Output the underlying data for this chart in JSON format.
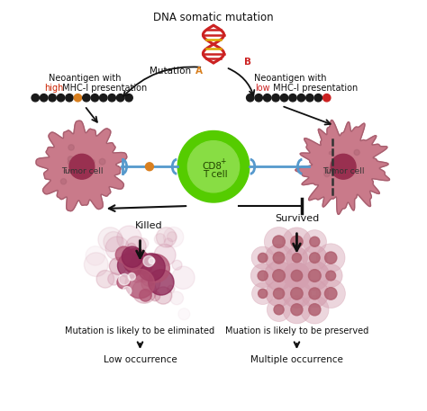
{
  "bg_color": "#ffffff",
  "title": "DNA somatic mutation",
  "left_label_line1": "Neoantigen with",
  "left_label_line2_red": "high",
  "left_label_line2_black": " MHC-I presentation",
  "right_label_line1": "Neoantigen with",
  "right_label_line2_red": "low",
  "right_label_line2_black": " MHC-I presentation",
  "mutation_a_black": "Mutation ",
  "mutation_a_orange": "A",
  "mutation_b_red": "B",
  "cd8_label": "CD8",
  "tumor_label": "Tumor cell",
  "killed_label": "Killed",
  "survived_label": "Survived",
  "low_occ_label": "Low occurrence",
  "multi_occ_label": "Multiple occurrence",
  "elim_label": "Mutation is likely to be eliminated",
  "pres_label": "Muation is likely to be preserved",
  "tumor_fill": "#c97a8a",
  "tumor_edge": "#a86070",
  "tumor_nuc": "#993050",
  "cd8_outer": "#55cc00",
  "cd8_inner": "#88dd44",
  "bead_black": "#1a1a1a",
  "bead_orange": "#d98020",
  "bead_red": "#cc2222",
  "conn_blue": "#5599cc",
  "dna_red": "#cc2222",
  "dna_gold": "#ddaa00",
  "arrow_col": "#222222",
  "destroyed_dark": "#8b2252",
  "destroyed_mid": "#b05070",
  "destroyed_light": "#d090aa",
  "healthy_fill": "#d4a0b0",
  "healthy_nuc": "#b06070",
  "healthy_edge": "#c08090"
}
